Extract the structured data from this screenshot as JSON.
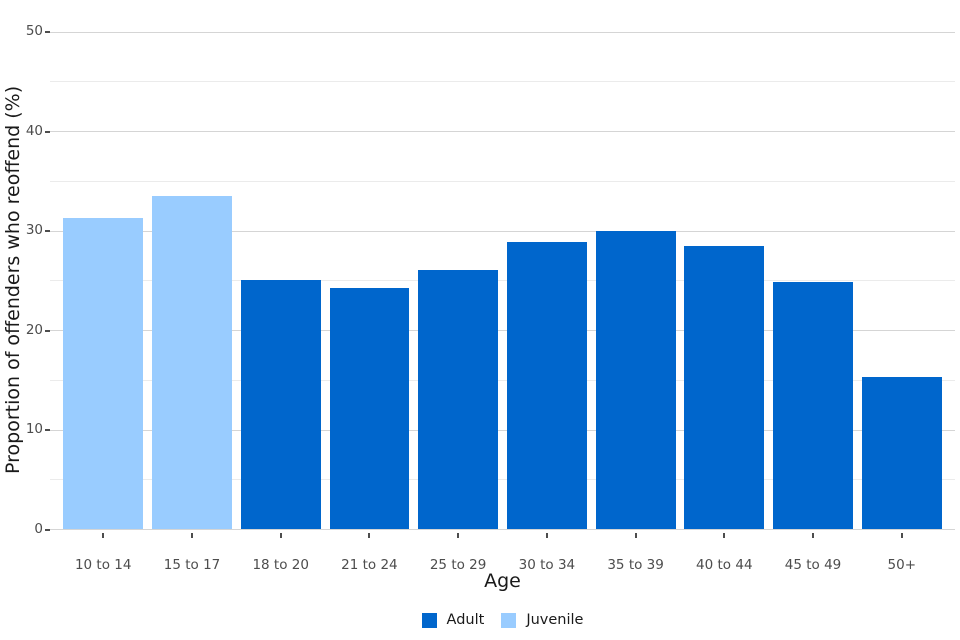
{
  "chart_data": {
    "type": "bar",
    "title": "",
    "xlabel": "Age",
    "ylabel": "Proportion of offenders who reoffend (%)",
    "categories": [
      "10 to 14",
      "15 to 17",
      "18 to 20",
      "21 to 24",
      "25 to 29",
      "30 to 34",
      "35 to 39",
      "40 to 44",
      "45 to 49",
      "50+"
    ],
    "series": [
      {
        "name": "Adult",
        "color": "#0066CC",
        "values": [
          null,
          null,
          25.0,
          24.2,
          26.0,
          28.9,
          30.0,
          28.5,
          24.8,
          15.3
        ]
      },
      {
        "name": "Juvenile",
        "color": "#99CCFF",
        "values": [
          31.3,
          33.5,
          null,
          null,
          null,
          null,
          null,
          null,
          null,
          null
        ]
      }
    ],
    "ylim": [
      0,
      50
    ],
    "yticks": [
      0,
      10,
      20,
      30,
      40,
      50
    ],
    "minor_yticks": [
      5,
      15,
      25,
      35,
      45
    ],
    "grid": true,
    "legend_position": "bottom",
    "colors": {
      "major_grid": "#D5D5D5",
      "minor_grid": "#EBEBEB",
      "tick_text": "#4D4D4D",
      "axis_title_text": "#1A1A1A",
      "background": "#FFFFFF"
    }
  }
}
